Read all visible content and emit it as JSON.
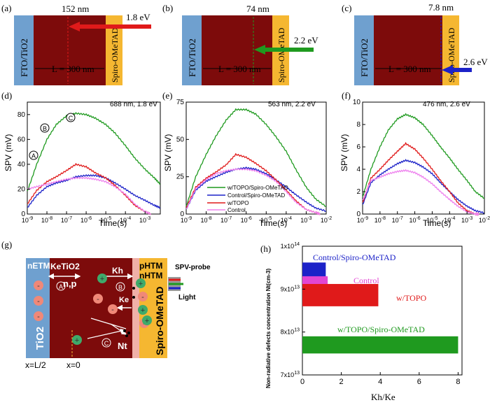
{
  "colors": {
    "fto": "#6fa0cf",
    "absorber": "#7d0b0b",
    "htl": "#f5b731",
    "green": "#1f9a1f",
    "blue": "#1c22c8",
    "red": "#e01a1a",
    "pink": "#ee82ee",
    "magenta": "#e246d3"
  },
  "device_panels": [
    {
      "label": "(a)",
      "fto": "FTO/TiO2",
      "htl": "Spiro-OMeTAD",
      "thickness": "L = 300 nm",
      "depth": "152 nm",
      "energy": "1.8 eV",
      "depth_nm": 152,
      "arrow_color": "#e01a1a"
    },
    {
      "label": "(b)",
      "fto": "FTO/TiO2",
      "htl": "Spiro-OMeTAD",
      "thickness": "L = 300 nm",
      "depth": "74 nm",
      "energy": "2.2 eV",
      "depth_nm": 74,
      "arrow_color": "#1f9a1f"
    },
    {
      "label": "(c)",
      "fto": "FTO/TiO2",
      "htl": "Spiro-OMeTAD",
      "thickness": "L = 300 nm",
      "depth": "7.8 nm",
      "energy": "2.6 eV",
      "depth_nm": 7.8,
      "arrow_color": "#1c22c8"
    }
  ],
  "chart_data": [
    {
      "type": "line",
      "label": "(d)",
      "annotation": "688 nm, 1.8 eV",
      "xlabel": "Time(s)",
      "ylabel": "SPV (mV)",
      "xscale": "log",
      "xlim": [
        1e-09,
        0.006
      ],
      "ylim": [
        0,
        90
      ],
      "yticks": [
        0,
        20,
        40,
        60,
        80
      ],
      "xticks": [
        "10^-9",
        "10^-8",
        "10^-7",
        "10^-6",
        "10^-5",
        "10^-4",
        "10^-3"
      ],
      "markers": [
        "A",
        "B",
        "C"
      ],
      "series": [
        {
          "name": "w/TOPO/Spiro-OMeTAD",
          "color": "#1f9a1f",
          "x": [
            1e-09,
            3e-09,
            1e-08,
            3e-08,
            1e-07,
            3e-07,
            1e-06,
            3e-06,
            1e-05,
            3e-05,
            0.0001,
            0.0003,
            0.001,
            0.003,
            0.006
          ],
          "y": [
            18,
            40,
            60,
            72,
            79,
            81,
            80,
            77,
            72,
            65,
            55,
            45,
            36,
            29,
            24
          ]
        },
        {
          "name": "Control/Spiro-OMeTAD",
          "color": "#1c22c8",
          "x": [
            1e-09,
            3e-09,
            1e-08,
            3e-08,
            1e-07,
            3e-07,
            1e-06,
            3e-06,
            1e-05,
            3e-05,
            0.0001,
            0.0003,
            0.001,
            0.003,
            0.006
          ],
          "y": [
            5,
            15,
            22,
            25,
            27,
            30,
            31,
            31,
            29,
            25,
            20,
            15,
            11,
            7,
            5
          ]
        },
        {
          "name": "w/TOPO",
          "color": "#e01a1a",
          "x": [
            1e-09,
            3e-09,
            1e-08,
            3e-08,
            1e-07,
            3e-07,
            1e-06,
            3e-06,
            1e-05,
            3e-05,
            0.0001,
            0.0003,
            0.001,
            0.002
          ],
          "y": [
            8,
            19,
            26,
            30,
            35,
            40,
            38,
            33,
            29,
            23,
            15,
            7,
            2,
            0
          ]
        },
        {
          "name": "Control",
          "color": "#ee82ee",
          "x": [
            1e-09,
            3e-09,
            1e-08,
            3e-08,
            1e-07,
            3e-07,
            1e-06,
            3e-06,
            1e-05,
            3e-05,
            0.0001,
            0.0003,
            0.001,
            0.002
          ],
          "y": [
            20,
            22,
            24,
            26,
            28,
            29,
            29,
            28,
            26,
            22,
            16,
            8,
            2,
            0
          ]
        }
      ]
    },
    {
      "type": "line",
      "label": "(e)",
      "annotation": "563 nm, 2.2 eV",
      "xlabel": "Time(s)",
      "ylabel": "SPV (mV)",
      "xscale": "log",
      "xlim": [
        1e-09,
        0.01
      ],
      "ylim": [
        0,
        75
      ],
      "yticks": [
        0,
        25,
        50,
        75
      ],
      "xticks": [
        "10^-9",
        "10^-8",
        "10^-7",
        "10^-6",
        "10^-5",
        "10^-4",
        "10^-3",
        "10^-2"
      ],
      "legend": [
        "w/TOPO/Spiro-OMeTAD",
        "Control/Spiro-OMeTAD",
        "w/TOPO",
        "Control"
      ],
      "series": [
        {
          "name": "w/TOPO/Spiro-OMeTAD",
          "color": "#1f9a1f",
          "x": [
            1e-09,
            3e-09,
            1e-08,
            3e-08,
            1e-07,
            3e-07,
            1e-06,
            3e-06,
            1e-05,
            3e-05,
            0.0001,
            0.0003,
            0.001,
            0.003,
            0.01
          ],
          "y": [
            5,
            25,
            40,
            52,
            63,
            70,
            70,
            67,
            60,
            52,
            42,
            30,
            18,
            10,
            5
          ]
        },
        {
          "name": "Control/Spiro-OMeTAD",
          "color": "#1c22c8",
          "x": [
            1e-09,
            3e-09,
            1e-08,
            3e-08,
            1e-07,
            3e-07,
            1e-06,
            3e-06,
            1e-05,
            3e-05,
            0.0001,
            0.0003,
            0.001,
            0.003,
            0.01
          ],
          "y": [
            3,
            16,
            22,
            25,
            28,
            30,
            31,
            30,
            27,
            23,
            18,
            13,
            8,
            4,
            2
          ]
        },
        {
          "name": "w/TOPO",
          "color": "#e01a1a",
          "x": [
            1e-09,
            3e-09,
            1e-08,
            3e-08,
            1e-07,
            3e-07,
            1e-06,
            3e-06,
            1e-05,
            3e-05,
            0.0001,
            0.0003,
            0.001,
            0.003,
            0.005
          ],
          "y": [
            4,
            18,
            24,
            28,
            33,
            40,
            38,
            34,
            29,
            23,
            16,
            9,
            3,
            1,
            0
          ]
        },
        {
          "name": "Control",
          "color": "#ee82ee",
          "x": [
            1e-09,
            3e-09,
            1e-08,
            3e-08,
            1e-07,
            3e-07,
            1e-06,
            3e-06,
            1e-05,
            3e-05,
            0.0001,
            0.0003,
            0.001,
            0.003,
            0.005
          ],
          "y": [
            3,
            17,
            23,
            27,
            29,
            30,
            30,
            29,
            26,
            22,
            15,
            8,
            3,
            1,
            0
          ]
        }
      ]
    },
    {
      "type": "line",
      "label": "(f)",
      "annotation": "476 nm, 2.6 eV",
      "xlabel": "Time(s)",
      "ylabel": "SPV (mV)",
      "xscale": "log",
      "xlim": [
        1e-09,
        0.01
      ],
      "ylim": [
        0,
        10
      ],
      "yticks": [
        0,
        2,
        4,
        6,
        8,
        10
      ],
      "xticks": [
        "10^-9",
        "10^-8",
        "10^-7",
        "10^-6",
        "10^-5",
        "10^-4",
        "10^-3",
        "10^-2"
      ],
      "series": [
        {
          "name": "w/TOPO/Spiro-OMeTAD",
          "color": "#1f9a1f",
          "x": [
            1e-09,
            3e-09,
            1e-08,
            3e-08,
            1e-07,
            3e-07,
            1e-06,
            3e-06,
            1e-05,
            3e-05,
            0.0001,
            0.0003,
            0.001,
            0.003,
            0.01
          ],
          "y": [
            1.5,
            4,
            6,
            7.5,
            8.5,
            8.9,
            8.6,
            8,
            7,
            6,
            5,
            4,
            3,
            2,
            1.4
          ]
        },
        {
          "name": "Control/Spiro-OMeTAD",
          "color": "#1c22c8",
          "x": [
            1e-09,
            3e-09,
            1e-08,
            3e-08,
            1e-07,
            3e-07,
            1e-06,
            3e-06,
            1e-05,
            3e-05,
            0.0001,
            0.0003,
            0.001,
            0.003,
            0.01
          ],
          "y": [
            0.8,
            2.8,
            3.5,
            4,
            4.5,
            4.8,
            4.6,
            4.2,
            3.6,
            2.8,
            2,
            1.3,
            0.7,
            0.3,
            0.1
          ]
        },
        {
          "name": "w/TOPO",
          "color": "#e01a1a",
          "x": [
            1e-09,
            3e-09,
            1e-08,
            3e-08,
            1e-07,
            3e-07,
            1e-06,
            3e-06,
            1e-05,
            3e-05,
            0.0001,
            0.0003,
            0.001,
            0.003,
            0.005
          ],
          "y": [
            1,
            3.2,
            4,
            4.8,
            5.6,
            6.3,
            5.8,
            5,
            4,
            3,
            2,
            1,
            0.3,
            0,
            0
          ]
        },
        {
          "name": "Control",
          "color": "#ee82ee",
          "x": [
            1e-09,
            3e-09,
            1e-08,
            3e-08,
            1e-07,
            3e-07,
            1e-06,
            3e-06,
            1e-05,
            3e-05,
            0.0001,
            0.0003,
            0.001,
            0.003,
            0.005
          ],
          "y": [
            1.2,
            3,
            3.3,
            3.6,
            3.8,
            3.9,
            3.7,
            3.3,
            2.7,
            2,
            1.3,
            0.7,
            0.2,
            0,
            0
          ]
        }
      ]
    },
    {
      "type": "bar",
      "orientation": "horizontal",
      "label": "(h)",
      "xlabel": "Kh/Ke",
      "ylabel": "Non-radiative defects concentration Nt(cm-3)",
      "xlim": [
        0,
        8.2
      ],
      "xticks": [
        0,
        2,
        4,
        6,
        8
      ],
      "ylim": [
        70000000000000.0,
        100000000000000.0
      ],
      "ytick_labels": [
        "7x10^13",
        "8x10^13",
        "9x10^13",
        "1x10^14"
      ],
      "bars": [
        {
          "name": "Control/Spiro-OMeTAD",
          "value": 1.2,
          "y_low": 91500000000000.0,
          "y_high": 96200000000000.0,
          "color": "#1c22c8"
        },
        {
          "name": "Control",
          "value": 1.3,
          "y_low": 90500000000000.0,
          "y_high": 93000000000000.0,
          "color": "#e246d3"
        },
        {
          "name": "w/TOPO",
          "value": 3.9,
          "y_low": 86000000000000.0,
          "y_high": 91200000000000.0,
          "color": "#e01a1a"
        },
        {
          "name": "w/TOPO/Spiro-OMeTAD",
          "value": 8.0,
          "y_low": 75000000000000.0,
          "y_high": 79000000000000.0,
          "color": "#1f9a1f"
        }
      ]
    }
  ],
  "schematic": {
    "label": "(g)",
    "n_etm": "nETM",
    "k_etio2": "KeTiO2",
    "np": "n,p",
    "kh": "Kh",
    "ke": "Ke",
    "p_htm": "pHTM",
    "n_htm": "nHTM",
    "nt": "Nt",
    "tio2": "TiO2",
    "spiro": "Spiro-OMeTAD",
    "spv_probe": "SPV-probe",
    "light": "Light",
    "x_left": "x=L/2",
    "x_zero": "x=0",
    "circle_a": "A",
    "circle_b": "B",
    "circle_c": "C",
    "minus": "-",
    "plus": "+"
  }
}
